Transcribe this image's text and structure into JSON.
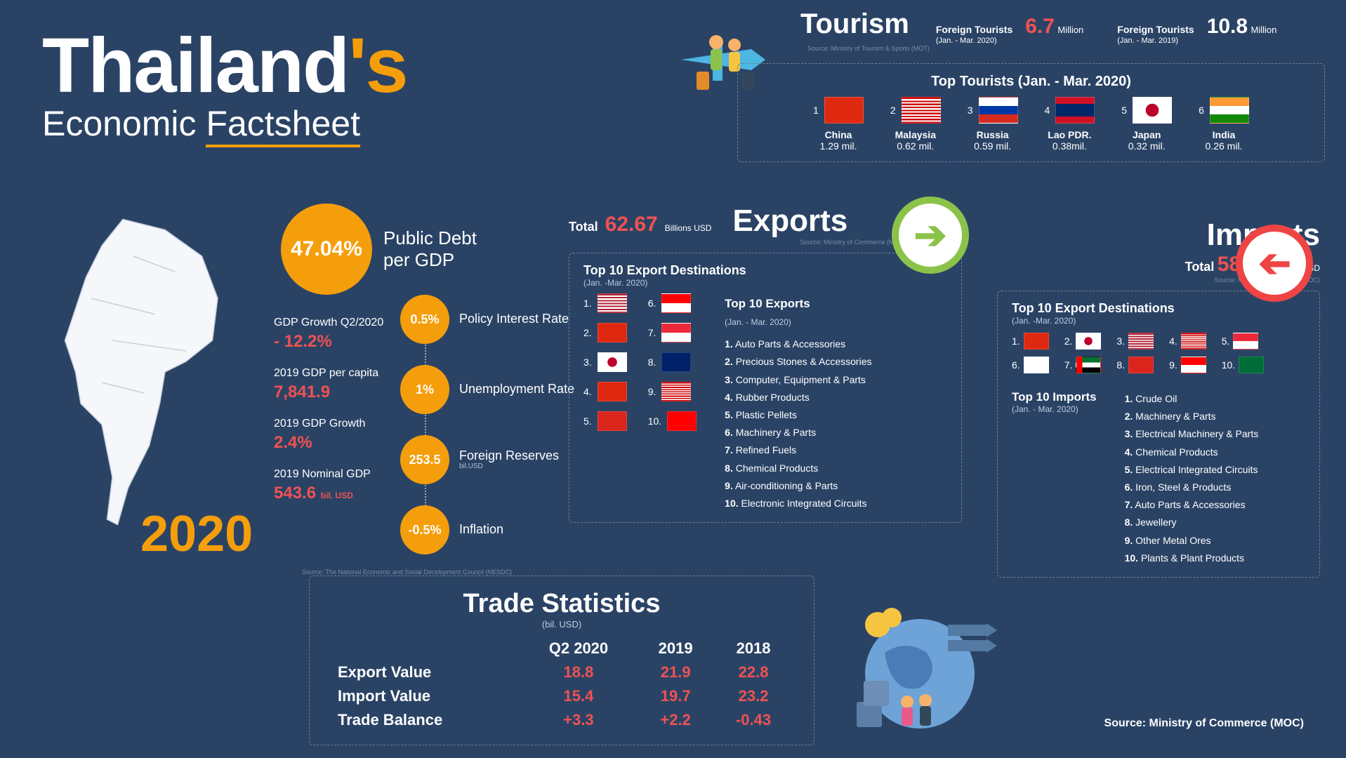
{
  "colors": {
    "bg": "#2a4365",
    "accent_orange": "#f59e0b",
    "accent_red": "#f05252",
    "export_green": "#8bc34a",
    "import_red": "#ef4444",
    "text": "#ffffff",
    "muted": "#7a8ba8",
    "dash_border": "#6c7f9c"
  },
  "title": {
    "main_pre": "Thailand",
    "main_accent": "'s",
    "sub_word1": "Economic",
    "sub_word2": "Factsheet",
    "year": "2020"
  },
  "debt": {
    "value": "47.04%",
    "label_l1": "Public Debt",
    "label_l2": "per GDP",
    "circle_color": "#f59e0b"
  },
  "gdp_stats": [
    {
      "label": "GDP Growth Q2/2020",
      "value": "- 12.2%",
      "unit": ""
    },
    {
      "label": "2019 GDP per capita",
      "value": "7,841.9",
      "unit": ""
    },
    {
      "label": "2019 GDP Growth",
      "value": "2.4%",
      "unit": ""
    },
    {
      "label": "2019 Nominal GDP",
      "value": "543.6",
      "unit": "bil. USD"
    }
  ],
  "indicators": [
    {
      "value": "0.5%",
      "label": "Policy Interest Rate",
      "sub": "",
      "color": "#f59e0b"
    },
    {
      "value": "1%",
      "label": "Unemployment Rate",
      "sub": "",
      "color": "#f59e0b"
    },
    {
      "value": "253.5",
      "label": "Foreign Reserves",
      "sub": "bil.USD",
      "color": "#f59e0b"
    },
    {
      "value": "-0.5%",
      "label": "Inflation",
      "sub": "",
      "color": "#f59e0b"
    }
  ],
  "indicator_source": "Source: The National Economic and Social Decelopment Council (NESDC)",
  "tourism": {
    "title": "Tourism",
    "source": "Source: Ministry of Tourism & Sports (MOT)",
    "stat1": {
      "label": "Foreign Tourists",
      "period": "(Jan. - Mar. 2020)",
      "value": "6.7",
      "unit": "Million",
      "color": "#f05252"
    },
    "stat2": {
      "label": "Foreign Tourists",
      "period": "(Jan. - Mar. 2019)",
      "value": "10.8",
      "unit": "Million",
      "color": "#ffffff"
    },
    "box_title": "Top Tourists (Jan. - Mar. 2020)",
    "items": [
      {
        "rank": "1",
        "country": "China",
        "value": "1.29 mil.",
        "flag": "china"
      },
      {
        "rank": "2",
        "country": "Malaysia",
        "value": "0.62 mil.",
        "flag": "malaysia"
      },
      {
        "rank": "3",
        "country": "Russia",
        "value": "0.59 mil.",
        "flag": "russia"
      },
      {
        "rank": "4",
        "country": "Lao PDR.",
        "value": "0.38mil.",
        "flag": "laos"
      },
      {
        "rank": "5",
        "country": "Japan",
        "value": "0.32 mil.",
        "flag": "japan"
      },
      {
        "rank": "6",
        "country": "India",
        "value": "0.26 mil.",
        "flag": "india"
      }
    ]
  },
  "exports": {
    "total_label": "Total",
    "total_value": "62.67",
    "total_unit": "Billions USD",
    "title": "Exports",
    "source": "Source: Ministry of Commerce (MOC)",
    "box_title": "Top 10 Export Destinations",
    "box_sub": "(Jan. -Mar. 2020)",
    "dest": [
      {
        "n": "1.",
        "flag": "usa"
      },
      {
        "n": "6.",
        "flag": "indonesia"
      },
      {
        "n": "2.",
        "flag": "china"
      },
      {
        "n": "7.",
        "flag": "singapore"
      },
      {
        "n": "3.",
        "flag": "japan"
      },
      {
        "n": "8.",
        "flag": "australia"
      },
      {
        "n": "4.",
        "flag": "hongkong"
      },
      {
        "n": "9.",
        "flag": "malaysia"
      },
      {
        "n": "5.",
        "flag": "vietnam"
      },
      {
        "n": "10.",
        "flag": "switzerland"
      }
    ],
    "list_title": "Top 10 Exports",
    "list_sub": "(Jan. - Mar. 2020)",
    "list": [
      "Auto Parts & Accessories",
      "Precious Stones & Accessories",
      "Computer, Equipment & Parts",
      "Rubber Products",
      "Plastic Pellets",
      "Machinery & Parts",
      "Refined Fuels",
      "Chemical Products",
      "Air-conditioning & Parts",
      "Electronic Integrated Circuits"
    ]
  },
  "imports": {
    "title": "Imports",
    "total_label": "Total",
    "total_value": "58.74",
    "total_unit": "Billions USD",
    "source": "Source: Ministry of Commerce (MOC)",
    "box_title": "Top 10 Export Destinations",
    "box_sub": "(Jan. -Mar. 2020)",
    "dest": [
      {
        "n": "1.",
        "flag": "china"
      },
      {
        "n": "2.",
        "flag": "japan"
      },
      {
        "n": "3.",
        "flag": "usa"
      },
      {
        "n": "4.",
        "flag": "malaysia"
      },
      {
        "n": "5.",
        "flag": "singapore"
      },
      {
        "n": "6.",
        "flag": "korea"
      },
      {
        "n": "7.",
        "flag": "uae"
      },
      {
        "n": "8.",
        "flag": "vietnam"
      },
      {
        "n": "9.",
        "flag": "indonesia"
      },
      {
        "n": "10.",
        "flag": "saudi"
      }
    ],
    "list_title": "Top 10 Imports",
    "list_sub": "(Jan. - Mar. 2020)",
    "list": [
      "Crude Oil",
      "Machinery & Parts",
      "Electrical Machinery & Parts",
      "Chemical Products",
      "Electrical Integrated Circuits",
      "Iron, Steel & Products",
      "Auto Parts & Accessories",
      "Jewellery",
      "Other Metal Ores",
      "Plants & Plant Products"
    ]
  },
  "trade": {
    "title": "Trade Statistics",
    "sub": "(bil. USD)",
    "cols": [
      "",
      "Q2 2020",
      "2019",
      "2018"
    ],
    "rows": [
      {
        "label": "Export Value",
        "vals": [
          "18.8",
          "21.9",
          "22.8"
        ]
      },
      {
        "label": "Import Value",
        "vals": [
          "15.4",
          "19.7",
          "23.2"
        ]
      },
      {
        "label": "Trade Balance",
        "vals": [
          "+3.3",
          "+2.2",
          "-0.43"
        ]
      }
    ]
  },
  "source_bottom": "Source: Ministry of Commerce (MOC)",
  "flags": {
    "china": "linear-gradient(#de2910,#de2910)",
    "malaysia": "repeating-linear-gradient(#cc0001 0 6%, #fff 6% 12%)",
    "russia": "linear-gradient(#fff 0 33%, #0039a6 33% 66%, #d52b1e 66% 100%)",
    "laos": "linear-gradient(#ce1126 0 25%, #002868 25% 75%, #ce1126 75% 100%)",
    "japan": "radial-gradient(circle at 50% 50%, #bc002d 0 28%, #fff 29% 100%)",
    "india": "linear-gradient(#ff9933 0 33%, #fff 33% 66%, #138808 66% 100%)",
    "usa": "repeating-linear-gradient(#b22234 0 8%, #fff 8% 16%)",
    "indonesia": "linear-gradient(#ff0000 0 50%, #fff 50% 100%)",
    "singapore": "linear-gradient(#ed2939 0 50%, #fff 50% 100%)",
    "australia": "linear-gradient(#012169,#012169)",
    "hongkong": "linear-gradient(#de2910,#de2910)",
    "vietnam": "linear-gradient(#da251d,#da251d)",
    "switzerland": "linear-gradient(#ff0000,#ff0000)",
    "korea": "linear-gradient(#fff,#fff)",
    "uae": "linear-gradient(90deg,#ff0000 0 25%,transparent 25%),linear-gradient(#00732f 0 33%,#fff 33% 66%,#000 66% 100%)",
    "saudi": "linear-gradient(#006c35,#006c35)"
  }
}
